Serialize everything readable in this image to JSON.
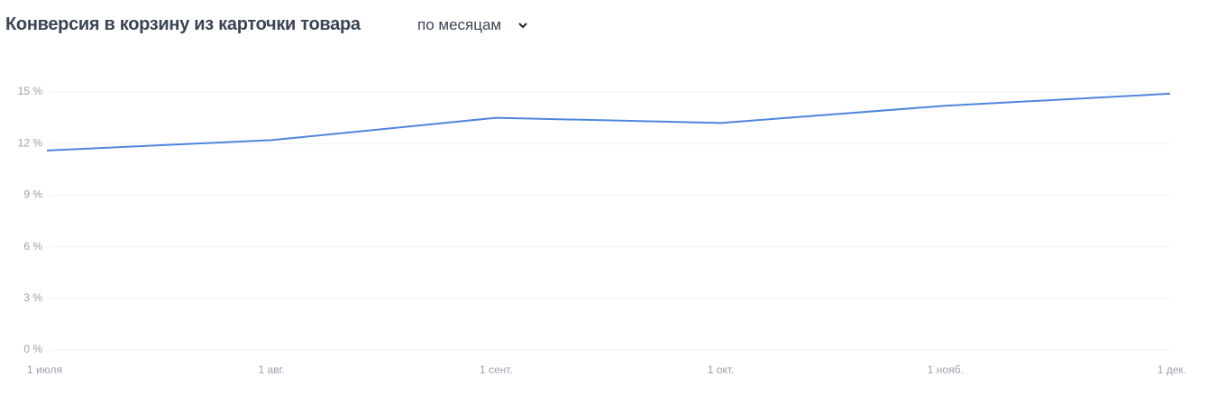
{
  "chart_data": {
    "type": "line",
    "title": "Конверсия в корзину из карточки товара",
    "period_selector": "по месяцам",
    "categories": [
      "1 июля",
      "1 авг.",
      "1 сент.",
      "1 окт.",
      "1 нояб.",
      "1 дек."
    ],
    "values": [
      11.6,
      12.2,
      13.5,
      13.2,
      14.2,
      14.9
    ],
    "color": "#4f86dc",
    "ylim": [
      0,
      15
    ],
    "yticks": [
      {
        "value": 0,
        "label": "0 %"
      },
      {
        "value": 3,
        "label": "3 %"
      },
      {
        "value": 6,
        "label": "6 %"
      },
      {
        "value": 9,
        "label": "9 %"
      },
      {
        "value": 12,
        "label": "12 %"
      },
      {
        "value": 15,
        "label": "15 %"
      }
    ],
    "grid": true
  }
}
